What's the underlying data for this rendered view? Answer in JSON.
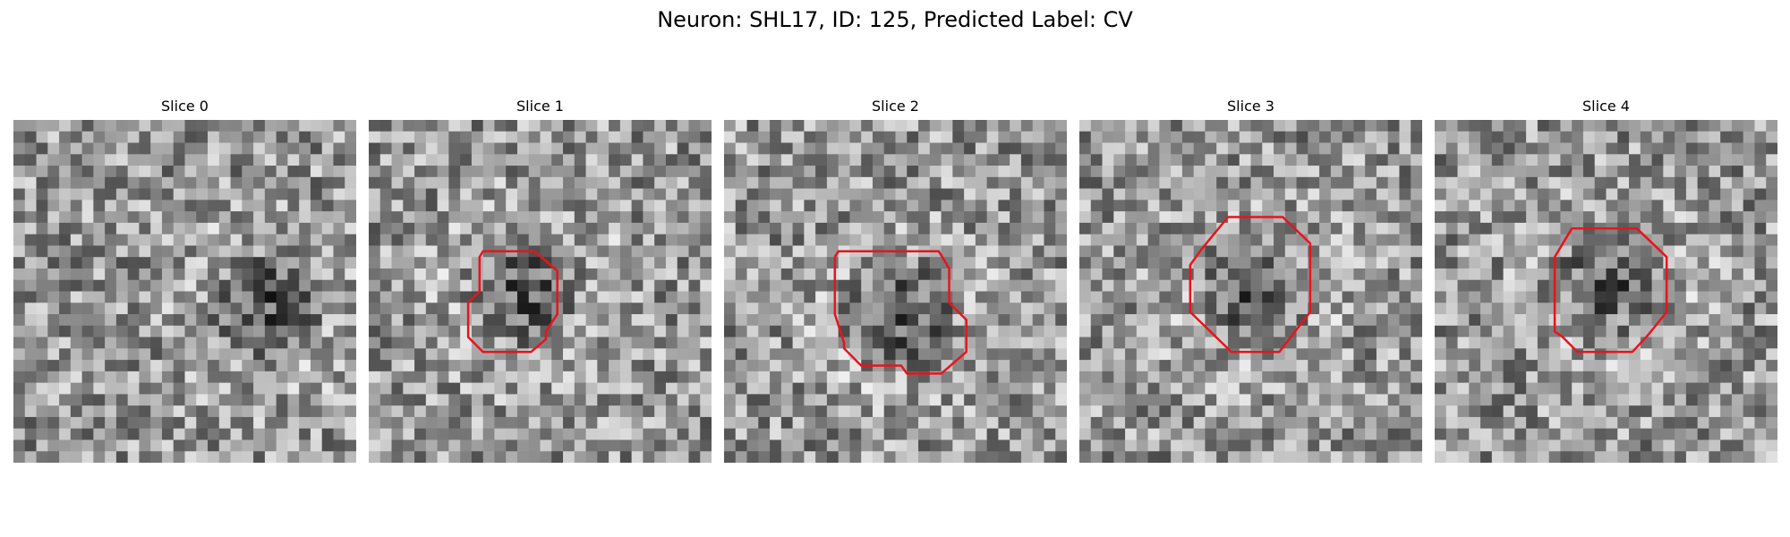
{
  "figure": {
    "title": "Neuron: SHL17, ID: 125, Predicted Label: CV"
  },
  "panels": [
    {
      "title": "Slice 0",
      "seed": 11,
      "dark_spot": [
        0.72,
        0.52
      ],
      "has_outline": false
    },
    {
      "title": "Slice 1",
      "seed": 23,
      "dark_spot": [
        0.45,
        0.48
      ],
      "has_outline": true
    },
    {
      "title": "Slice 2",
      "seed": 37,
      "dark_spot": [
        0.5,
        0.55
      ],
      "has_outline": true
    },
    {
      "title": "Slice 3",
      "seed": 41,
      "dark_spot": [
        0.5,
        0.48
      ],
      "has_outline": true
    },
    {
      "title": "Slice 4",
      "seed": 59,
      "dark_spot": [
        0.5,
        0.45
      ],
      "has_outline": true
    }
  ],
  "colors": {
    "outline": "#e8141c",
    "colormap": "gray"
  }
}
